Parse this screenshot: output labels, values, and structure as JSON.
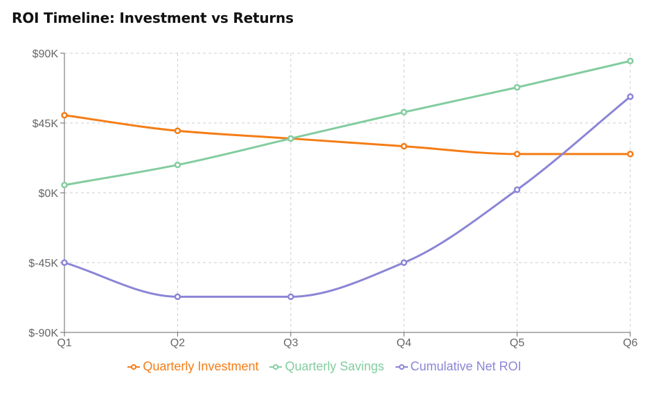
{
  "title": "ROI Timeline: Investment vs Returns",
  "chart_data": {
    "type": "line",
    "title": "ROI Timeline: Investment vs Returns",
    "categories": [
      "Q1",
      "Q2",
      "Q3",
      "Q4",
      "Q5",
      "Q6"
    ],
    "ylim": [
      -90000,
      90000
    ],
    "yticks": [
      {
        "value": 90000,
        "label": "$90K"
      },
      {
        "value": 45000,
        "label": "$45K"
      },
      {
        "value": 0,
        "label": "$0K"
      },
      {
        "value": -45000,
        "label": "$-45K"
      },
      {
        "value": -90000,
        "label": "$-90K"
      }
    ],
    "grid": true,
    "legend_position": "bottom",
    "series": [
      {
        "name": "Quarterly Investment",
        "color": "#f57c14",
        "values": [
          50000,
          40000,
          35000,
          30000,
          25000,
          25000
        ]
      },
      {
        "name": "Quarterly Savings",
        "color": "#82cc9f",
        "values": [
          5000,
          18000,
          35000,
          52000,
          68000,
          85000
        ]
      },
      {
        "name": "Cumulative Net ROI",
        "color": "#8a85d6",
        "values": [
          -45000,
          -67000,
          -67000,
          -45000,
          2000,
          62000
        ]
      }
    ]
  }
}
